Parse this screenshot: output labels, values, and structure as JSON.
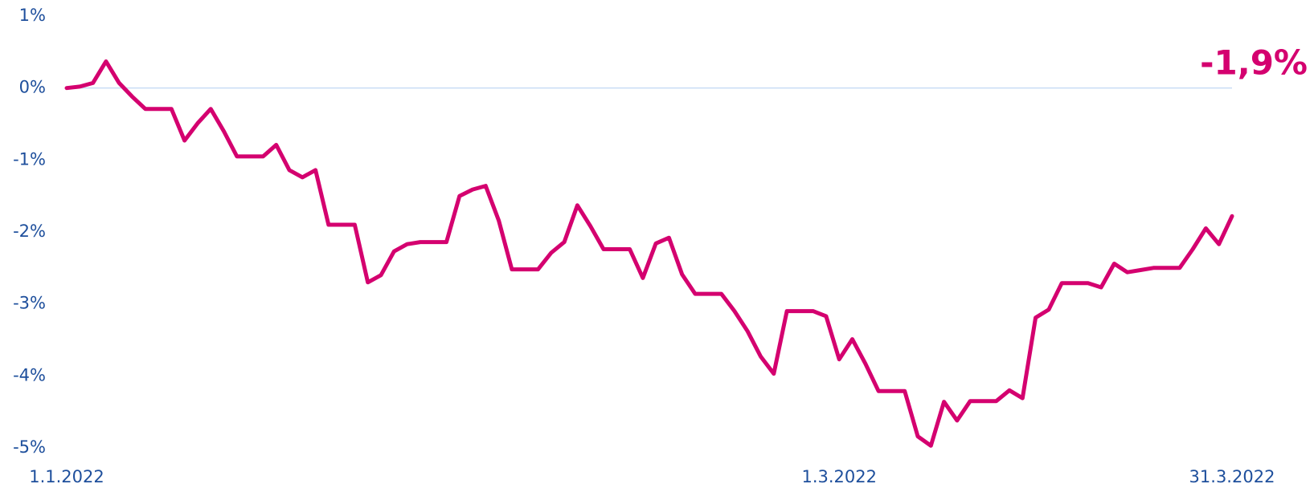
{
  "chart_data": {
    "type": "line",
    "annotation": "-1,9%",
    "x": [
      "1.1.2022",
      "2.1.2022",
      "3.1.2022",
      "4.1.2022",
      "5.1.2022",
      "6.1.2022",
      "7.1.2022",
      "8.1.2022",
      "9.1.2022",
      "10.1.2022",
      "11.1.2022",
      "12.1.2022",
      "13.1.2022",
      "14.1.2022",
      "15.1.2022",
      "16.1.2022",
      "17.1.2022",
      "18.1.2022",
      "19.1.2022",
      "20.1.2022",
      "21.1.2022",
      "22.1.2022",
      "23.1.2022",
      "24.1.2022",
      "25.1.2022",
      "26.1.2022",
      "27.1.2022",
      "28.1.2022",
      "29.1.2022",
      "30.1.2022",
      "31.1.2022",
      "1.2.2022",
      "2.2.2022",
      "3.2.2022",
      "4.2.2022",
      "5.2.2022",
      "6.2.2022",
      "7.2.2022",
      "8.2.2022",
      "9.2.2022",
      "10.2.2022",
      "11.2.2022",
      "12.2.2022",
      "13.2.2022",
      "14.2.2022",
      "15.2.2022",
      "16.2.2022",
      "17.2.2022",
      "18.2.2022",
      "19.2.2022",
      "20.2.2022",
      "21.2.2022",
      "22.2.2022",
      "23.2.2022",
      "24.2.2022",
      "25.2.2022",
      "26.2.2022",
      "27.2.2022",
      "28.2.2022",
      "1.3.2022",
      "2.3.2022",
      "3.3.2022",
      "4.3.2022",
      "5.3.2022",
      "6.3.2022",
      "7.3.2022",
      "8.3.2022",
      "9.3.2022",
      "10.3.2022",
      "11.3.2022",
      "12.3.2022",
      "13.3.2022",
      "14.3.2022",
      "15.3.2022",
      "16.3.2022",
      "17.3.2022",
      "18.3.2022",
      "19.3.2022",
      "20.3.2022",
      "21.3.2022",
      "22.3.2022",
      "23.3.2022",
      "24.3.2022",
      "25.3.2022",
      "26.3.2022",
      "27.3.2022",
      "28.3.2022",
      "29.3.2022",
      "30.3.2022",
      "31.3.2022"
    ],
    "series": [
      {
        "color": "#d4006f",
        "values": [
          0,
          0.02,
          0.07,
          0.37,
          0.07,
          -0.12,
          -0.29,
          -0.29,
          -0.29,
          -0.73,
          -0.49,
          -0.29,
          -0.6,
          -0.95,
          -0.95,
          -0.95,
          -0.79,
          -1.14,
          -1.24,
          -1.14,
          -1.9,
          -1.9,
          -1.9,
          -2.7,
          -2.6,
          -2.27,
          -2.17,
          -2.14,
          -2.14,
          -2.14,
          -1.5,
          -1.41,
          -1.36,
          -1.84,
          -2.52,
          -2.52,
          -2.52,
          -2.29,
          -2.14,
          -1.63,
          -1.92,
          -2.24,
          -2.24,
          -2.24,
          -2.64,
          -2.16,
          -2.08,
          -2.59,
          -2.86,
          -2.86,
          -2.86,
          -3.1,
          -3.38,
          -3.73,
          -3.97,
          -3.1,
          -3.1,
          -3.1,
          -3.17,
          -3.77,
          -3.49,
          -3.83,
          -4.21,
          -4.21,
          -4.21,
          -4.84,
          -4.97,
          -4.36,
          -4.62,
          -4.35,
          -4.35,
          -4.35,
          -4.2,
          -4.31,
          -3.19,
          -3.08,
          -2.71,
          -2.71,
          -2.71,
          -2.77,
          -2.44,
          -2.56,
          -2.53,
          -2.5,
          -2.5,
          -2.5,
          -2.24,
          -1.95,
          -2.17,
          -1.78
        ]
      }
    ],
    "xlim": [
      "1.1.2022",
      "31.3.2022"
    ],
    "xticks": [
      "1.1.2022",
      "1.3.2022",
      "31.3.2022"
    ],
    "ylim": [
      -5,
      1
    ],
    "yticks": [
      {
        "value": 1,
        "label": "1%"
      },
      {
        "value": 0,
        "label": "0%"
      },
      {
        "value": -1,
        "label": "-1%"
      },
      {
        "value": -2,
        "label": "-2%"
      },
      {
        "value": -3,
        "label": "-3%"
      },
      {
        "value": -4,
        "label": "-4%"
      },
      {
        "value": -5,
        "label": "-5%"
      }
    ],
    "grid": false,
    "hline": 0,
    "hline_color": "#c9ddf5"
  }
}
